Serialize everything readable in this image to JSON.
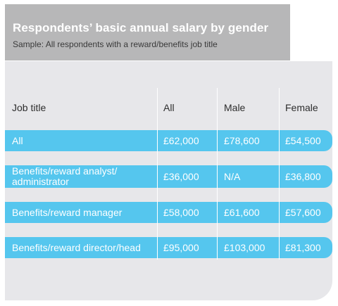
{
  "header": {
    "title": "Respondents’ basic annual salary by gender",
    "subtitle": "Sample: All respondents with a reward/benefits job title"
  },
  "table": {
    "columns": [
      "Job title",
      "All",
      "Male",
      "Female"
    ],
    "rows": [
      [
        "All",
        "£62,000",
        "£78,600",
        "£54,500"
      ],
      [
        "Benefits/reward analyst/ administrator",
        "£36,000",
        "N/A",
        "£36,800"
      ],
      [
        "Benefits/reward manager",
        "£58,000",
        "£61,600",
        "£57,600"
      ],
      [
        "Benefits/reward director/head",
        "£95,000",
        "£103,000",
        "£81,300"
      ]
    ]
  },
  "colors": {
    "header_bg": "#b7b7b8",
    "card_bg": "#e7e7ea",
    "row_bg": "#55c6ee",
    "row_text": "#ffffff"
  }
}
